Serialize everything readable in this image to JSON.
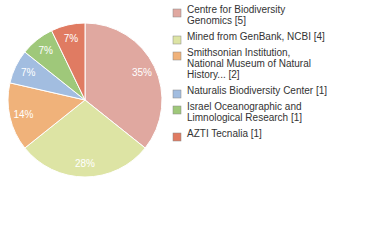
{
  "chart_data": {
    "type": "pie",
    "categories": [
      "Centre for Biodiversity Genomics [5]",
      "Mined from GenBank, NCBI [4]",
      "Smithsonian Institution, National Museum of Natural History... [2]",
      "Naturalis Biodiversity Center [1]",
      "Israel Oceanographic and Limnological Research [1]",
      "AZTI Tecnalia [1]"
    ],
    "values": [
      35,
      28,
      14,
      7,
      7,
      7
    ],
    "value_labels": [
      "35%",
      "28%",
      "14%",
      "7%",
      "7%",
      "7%"
    ],
    "colors": [
      "#e0a8a0",
      "#dde4a4",
      "#f0b27a",
      "#a2bde0",
      "#9fc87a",
      "#e07b62"
    ],
    "data_labels": true,
    "legend": "top-right"
  }
}
